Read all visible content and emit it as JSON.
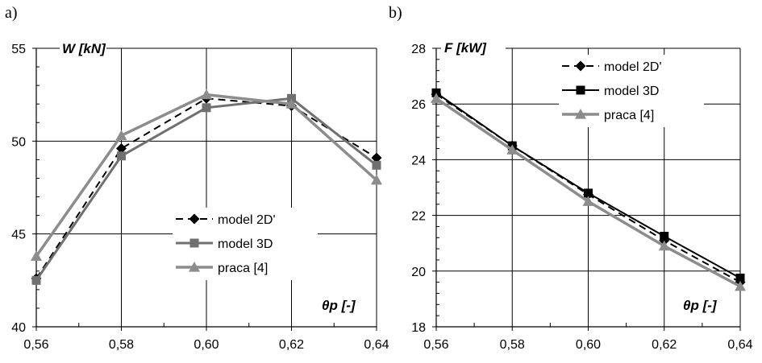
{
  "chart_data": [
    {
      "panel_label": "a)",
      "type": "line",
      "x": [
        0.56,
        0.58,
        0.6,
        0.62,
        0.64
      ],
      "x_tick_labels": [
        "0,56",
        "0,58",
        "0,60",
        "0,62",
        "0,64"
      ],
      "xlim": [
        0.56,
        0.64
      ],
      "ylim": [
        40,
        55
      ],
      "y_ticks": [
        40,
        45,
        50,
        55
      ],
      "y_tick_labels": [
        "40",
        "45",
        "50",
        "55"
      ],
      "ylabel": "W [kN]",
      "xlabel": "θp [-]",
      "grid": true,
      "legend_position": "center-right",
      "series": [
        {
          "name": "model 2D'",
          "values": [
            42.6,
            49.6,
            52.3,
            51.9,
            49.1
          ],
          "color": "#000000",
          "dash": "9,6",
          "marker": "diamond",
          "width": 2
        },
        {
          "name": "model 3D",
          "values": [
            42.5,
            49.2,
            51.8,
            52.3,
            48.7
          ],
          "color": "#707070",
          "dash": "",
          "marker": "square",
          "width": 3
        },
        {
          "name": "praca [4]",
          "values": [
            43.8,
            50.3,
            52.5,
            52.0,
            47.9
          ],
          "color": "#8c8c8c",
          "dash": "",
          "marker": "triangle",
          "width": 3.5
        }
      ]
    },
    {
      "panel_label": "b)",
      "type": "line",
      "x": [
        0.56,
        0.58,
        0.6,
        0.62,
        0.64
      ],
      "x_tick_labels": [
        "0,56",
        "0,58",
        "0,60",
        "0,62",
        "0,64"
      ],
      "xlim": [
        0.56,
        0.64
      ],
      "ylim": [
        18,
        28
      ],
      "y_ticks": [
        18,
        20,
        22,
        24,
        26,
        28
      ],
      "y_tick_labels": [
        "18",
        "20",
        "22",
        "24",
        "26",
        "28"
      ],
      "ylabel": "F [kW]",
      "xlabel": "θp [-]",
      "grid": true,
      "legend_position": "top-right",
      "series": [
        {
          "name": "model 2D'",
          "values": [
            26.35,
            24.5,
            22.75,
            21.1,
            19.6
          ],
          "color": "#000000",
          "dash": "9,6",
          "marker": "diamond",
          "width": 2
        },
        {
          "name": "model 3D",
          "values": [
            26.4,
            24.5,
            22.8,
            21.25,
            19.75
          ],
          "color": "#000000",
          "dash": "",
          "marker": "square",
          "width": 2
        },
        {
          "name": "praca [4]",
          "values": [
            26.2,
            24.35,
            22.5,
            20.9,
            19.45
          ],
          "color": "#8c8c8c",
          "dash": "",
          "marker": "triangle",
          "width": 3.5
        }
      ]
    }
  ]
}
